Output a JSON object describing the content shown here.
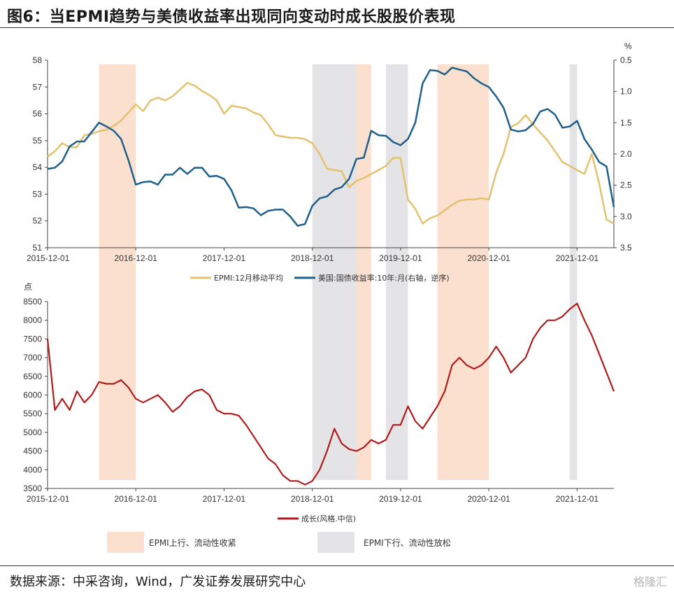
{
  "header": {
    "title": "图6：当EPMI趋势与美债收益率出现同向变动时成长股股价表现"
  },
  "footer": {
    "source": "数据来源：中采咨询，Wind，广发证券发展研究中心",
    "watermark": "格隆汇"
  },
  "colors": {
    "epmi": "#e2c26e",
    "yield": "#1f5f8b",
    "growth": "#b01c1c",
    "growth_highlight": "#d46a6a",
    "peach": "#fbe0cf",
    "gray": "#e4e4e6"
  },
  "chart_data": [
    {
      "type": "line",
      "name": "top",
      "x_ticks": [
        "2015-12-01",
        "2016-12-01",
        "2017-12-01",
        "2018-12-01",
        "2019-12-01",
        "2020-12-01",
        "2021-12-01"
      ],
      "ylim_left": [
        51,
        58
      ],
      "yticks_left": [
        "51",
        "52",
        "53",
        "54",
        "55",
        "56",
        "57",
        "58"
      ],
      "ylim_right": [
        0.5,
        3.5
      ],
      "right_reversed": true,
      "right_unit": "%",
      "yticks_right": [
        "0.5",
        "1.0",
        "1.5",
        "2.0",
        "2.5",
        "3.0",
        "3.5"
      ],
      "series": [
        {
          "name": "EPMI:12月移动平均",
          "axis": "left",
          "x": [
            "2015-12",
            "2016-01",
            "2016-02",
            "2016-03",
            "2016-04",
            "2016-05",
            "2016-06",
            "2016-07",
            "2016-08",
            "2016-09",
            "2016-10",
            "2016-11",
            "2016-12",
            "2017-01",
            "2017-02",
            "2017-03",
            "2017-04",
            "2017-05",
            "2017-06",
            "2017-07",
            "2017-08",
            "2017-09",
            "2017-10",
            "2017-11",
            "2017-12",
            "2018-01",
            "2018-02",
            "2018-03",
            "2018-04",
            "2018-05",
            "2018-06",
            "2018-07",
            "2018-08",
            "2018-09",
            "2018-10",
            "2018-11",
            "2018-12",
            "2019-01",
            "2019-02",
            "2019-03",
            "2019-04",
            "2019-05",
            "2019-06",
            "2019-07",
            "2019-08",
            "2019-09",
            "2019-10",
            "2019-11",
            "2019-12",
            "2020-01",
            "2020-02",
            "2020-03",
            "2020-04",
            "2020-05",
            "2020-06",
            "2020-07",
            "2020-08",
            "2020-09",
            "2020-10",
            "2020-11",
            "2020-12",
            "2021-01",
            "2021-02",
            "2021-03",
            "2021-04",
            "2021-05",
            "2021-06",
            "2021-07",
            "2021-08",
            "2021-09",
            "2021-10",
            "2021-11",
            "2021-12",
            "2022-01",
            "2022-02",
            "2022-03",
            "2022-04",
            "2022-05"
          ],
          "values": [
            54.4,
            54.6,
            54.9,
            54.75,
            54.75,
            55.2,
            55.25,
            55.35,
            55.4,
            55.55,
            55.75,
            56.05,
            56.35,
            56.1,
            56.5,
            56.6,
            56.5,
            56.65,
            56.9,
            57.15,
            57.05,
            56.85,
            56.7,
            56.5,
            56.0,
            56.3,
            56.25,
            56.2,
            56.05,
            55.95,
            55.6,
            55.2,
            55.15,
            55.1,
            55.1,
            55.05,
            54.9,
            54.5,
            53.95,
            53.9,
            53.85,
            53.25,
            53.5,
            53.6,
            53.75,
            53.9,
            54.05,
            54.35,
            54.35,
            52.8,
            52.45,
            51.9,
            52.1,
            52.2,
            52.4,
            52.6,
            52.75,
            52.8,
            52.8,
            52.85,
            52.8,
            53.8,
            54.5,
            55.5,
            55.65,
            55.95,
            55.6,
            55.3,
            55.0,
            54.6,
            54.2,
            54.05,
            53.9,
            53.75,
            54.5,
            53.4,
            52.05,
            51.9
          ],
          "color": "#e2c26e"
        },
        {
          "name": "美国:国债收益率:10年:月(右轴，逆序)",
          "axis": "right",
          "x": [
            "2015-12",
            "2016-01",
            "2016-02",
            "2016-03",
            "2016-04",
            "2016-05",
            "2016-06",
            "2016-07",
            "2016-08",
            "2016-09",
            "2016-10",
            "2016-11",
            "2016-12",
            "2017-01",
            "2017-02",
            "2017-03",
            "2017-04",
            "2017-05",
            "2017-06",
            "2017-07",
            "2017-08",
            "2017-09",
            "2017-10",
            "2017-11",
            "2017-12",
            "2018-01",
            "2018-02",
            "2018-03",
            "2018-04",
            "2018-05",
            "2018-06",
            "2018-07",
            "2018-08",
            "2018-09",
            "2018-10",
            "2018-11",
            "2018-12",
            "2019-01",
            "2019-02",
            "2019-03",
            "2019-04",
            "2019-05",
            "2019-06",
            "2019-07",
            "2019-08",
            "2019-09",
            "2019-10",
            "2019-11",
            "2019-12",
            "2020-01",
            "2020-02",
            "2020-03",
            "2020-04",
            "2020-05",
            "2020-06",
            "2020-07",
            "2020-08",
            "2020-09",
            "2020-10",
            "2020-11",
            "2020-12",
            "2021-01",
            "2021-02",
            "2021-03",
            "2021-04",
            "2021-05",
            "2021-06",
            "2021-07",
            "2021-08",
            "2021-09",
            "2021-10",
            "2021-11",
            "2021-12",
            "2022-01",
            "2022-02",
            "2022-03",
            "2022-04",
            "2022-05"
          ],
          "values": [
            2.24,
            2.22,
            2.12,
            1.88,
            1.8,
            1.8,
            1.65,
            1.5,
            1.56,
            1.63,
            1.76,
            2.1,
            2.49,
            2.45,
            2.44,
            2.49,
            2.33,
            2.33,
            2.22,
            2.32,
            2.22,
            2.22,
            2.36,
            2.35,
            2.4,
            2.58,
            2.86,
            2.85,
            2.87,
            2.98,
            2.91,
            2.89,
            2.89,
            3.0,
            3.15,
            3.12,
            2.83,
            2.71,
            2.68,
            2.57,
            2.53,
            2.4,
            2.08,
            2.06,
            1.63,
            1.7,
            1.71,
            1.81,
            1.86,
            1.76,
            1.5,
            0.87,
            0.66,
            0.67,
            0.73,
            0.62,
            0.65,
            0.68,
            0.79,
            0.87,
            0.93,
            1.08,
            1.26,
            1.61,
            1.64,
            1.62,
            1.52,
            1.32,
            1.28,
            1.37,
            1.58,
            1.56,
            1.47,
            1.76,
            1.93,
            2.13,
            2.2,
            2.85
          ],
          "color": "#1f5f8b"
        }
      ],
      "legend_placement": "bottom"
    },
    {
      "type": "line",
      "name": "bottom",
      "unit": "点",
      "x_ticks": [
        "2015-12-01",
        "2016-12-01",
        "2017-12-01",
        "2018-12-01",
        "2019-12-01",
        "2020-12-01",
        "2021-12-01"
      ],
      "ylim": [
        3500,
        8500
      ],
      "yticks": [
        "3500",
        "4000",
        "4500",
        "5000",
        "5500",
        "6000",
        "6500",
        "7000",
        "7500",
        "8000",
        "8500"
      ],
      "series": [
        {
          "name": "成长(风格.中信)",
          "x": [
            "2015-12",
            "2016-01",
            "2016-02",
            "2016-03",
            "2016-04",
            "2016-05",
            "2016-06",
            "2016-07",
            "2016-08",
            "2016-09",
            "2016-10",
            "2016-11",
            "2016-12",
            "2017-01",
            "2017-02",
            "2017-03",
            "2017-04",
            "2017-05",
            "2017-06",
            "2017-07",
            "2017-08",
            "2017-09",
            "2017-10",
            "2017-11",
            "2017-12",
            "2018-01",
            "2018-02",
            "2018-03",
            "2018-04",
            "2018-05",
            "2018-06",
            "2018-07",
            "2018-08",
            "2018-09",
            "2018-10",
            "2018-11",
            "2018-12",
            "2019-01",
            "2019-02",
            "2019-03",
            "2019-04",
            "2019-05",
            "2019-06",
            "2019-07",
            "2019-08",
            "2019-09",
            "2019-10",
            "2019-11",
            "2019-12",
            "2020-01",
            "2020-02",
            "2020-03",
            "2020-04",
            "2020-05",
            "2020-06",
            "2020-07",
            "2020-08",
            "2020-09",
            "2020-10",
            "2020-11",
            "2020-12",
            "2021-01",
            "2021-02",
            "2021-03",
            "2021-04",
            "2021-05",
            "2021-06",
            "2021-07",
            "2021-08",
            "2021-09",
            "2021-10",
            "2021-11",
            "2021-12",
            "2022-01",
            "2022-02",
            "2022-03",
            "2022-04",
            "2022-05"
          ],
          "values": [
            7500,
            5600,
            5900,
            5600,
            6100,
            5800,
            6000,
            6350,
            6300,
            6300,
            6400,
            6200,
            5900,
            5800,
            5900,
            6000,
            5800,
            5550,
            5700,
            5950,
            6100,
            6150,
            6000,
            5600,
            5500,
            5500,
            5450,
            5200,
            4900,
            4600,
            4300,
            4150,
            3850,
            3700,
            3700,
            3600,
            3700,
            4000,
            4500,
            5100,
            4700,
            4550,
            4500,
            4600,
            4800,
            4700,
            4800,
            5200,
            5200,
            5700,
            5300,
            5100,
            5400,
            5700,
            6100,
            6800,
            7000,
            6800,
            6700,
            6800,
            7000,
            7300,
            7000,
            6600,
            6800,
            7000,
            7500,
            7800,
            8000,
            8000,
            8100,
            8300,
            8450,
            8000,
            7600,
            7100,
            6600,
            6100
          ],
          "color": "#b01c1c"
        }
      ],
      "legend_placement": "bottom"
    }
  ],
  "bands": {
    "peach": [
      [
        "2016-07",
        "2016-12"
      ],
      [
        "2019-04",
        "2019-08"
      ],
      [
        "2020-05",
        "2020-12"
      ]
    ],
    "gray": [
      [
        "2018-12",
        "2019-06"
      ],
      [
        "2019-10",
        "2020-01"
      ],
      [
        "2021-11",
        "2021-12"
      ]
    ]
  },
  "bottom_legend": [
    {
      "label": "EPMI上行、流动性收紧",
      "color": "#fbe0cf"
    },
    {
      "label": "EPMI下行、流动性放松",
      "color": "#e4e4e6"
    }
  ]
}
